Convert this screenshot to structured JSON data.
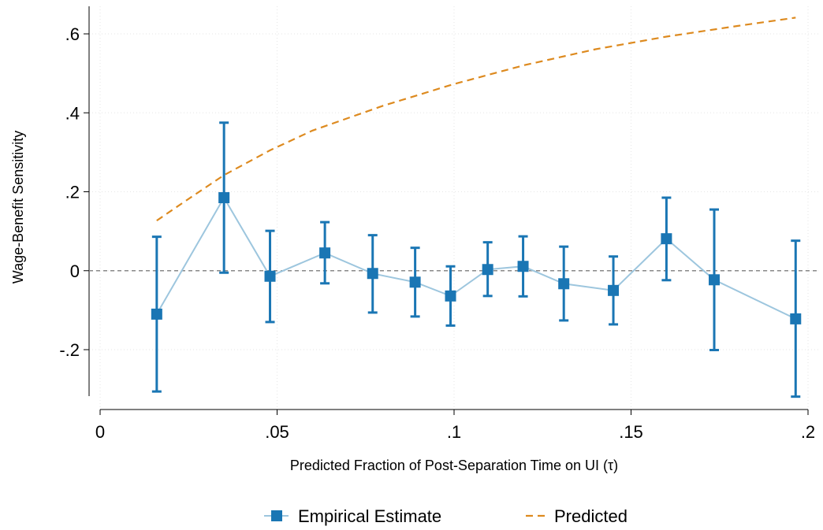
{
  "chart_data": {
    "type": "line",
    "xlabel": "Predicted Fraction of Post-Separation Time on UI (τ)",
    "ylabel": "Wage-Benefit Sensitivity",
    "xlim": [
      0,
      0.2
    ],
    "ylim": [
      -0.35,
      0.65
    ],
    "x_ticks": [
      0,
      0.05,
      0.1,
      0.15,
      0.2
    ],
    "x_tick_labels": [
      "0",
      ".05",
      ".1",
      ".15",
      ".2"
    ],
    "y_ticks": [
      -0.2,
      0,
      0.2,
      0.4,
      0.6
    ],
    "y_tick_labels": [
      "-.2",
      "0",
      ".2",
      ".4",
      ".6"
    ],
    "grid": true,
    "reference_line": {
      "y": 0,
      "style": "dashed",
      "color": "#888888"
    },
    "legend": {
      "position": "bottom"
    },
    "series": [
      {
        "name": "Empirical Estimate",
        "marker": "square",
        "color": "#1a76b4",
        "line_color": "#9dc6de",
        "points": [
          {
            "x": 0.016,
            "y": -0.11,
            "lo": -0.306,
            "hi": 0.086
          },
          {
            "x": 0.035,
            "y": 0.185,
            "lo": -0.005,
            "hi": 0.375
          },
          {
            "x": 0.048,
            "y": -0.014,
            "lo": -0.13,
            "hi": 0.101
          },
          {
            "x": 0.0635,
            "y": 0.045,
            "lo": -0.032,
            "hi": 0.123
          },
          {
            "x": 0.077,
            "y": -0.007,
            "lo": -0.106,
            "hi": 0.09
          },
          {
            "x": 0.089,
            "y": -0.029,
            "lo": -0.116,
            "hi": 0.058
          },
          {
            "x": 0.099,
            "y": -0.064,
            "lo": -0.139,
            "hi": 0.011
          },
          {
            "x": 0.1095,
            "y": 0.003,
            "lo": -0.064,
            "hi": 0.072
          },
          {
            "x": 0.1195,
            "y": 0.011,
            "lo": -0.065,
            "hi": 0.087
          },
          {
            "x": 0.131,
            "y": -0.033,
            "lo": -0.126,
            "hi": 0.061
          },
          {
            "x": 0.145,
            "y": -0.05,
            "lo": -0.136,
            "hi": 0.036
          },
          {
            "x": 0.16,
            "y": 0.081,
            "lo": -0.024,
            "hi": 0.185
          },
          {
            "x": 0.1735,
            "y": -0.023,
            "lo": -0.201,
            "hi": 0.155
          },
          {
            "x": 0.1965,
            "y": -0.122,
            "lo": -0.319,
            "hi": 0.076
          }
        ]
      },
      {
        "name": "Predicted",
        "style": "dashed",
        "color": "#dd8a1f",
        "x": [
          0.016,
          0.025,
          0.035,
          0.048,
          0.06,
          0.08,
          0.1,
          0.12,
          0.14,
          0.16,
          0.18,
          0.1965
        ],
        "y": [
          0.127,
          0.182,
          0.242,
          0.305,
          0.355,
          0.418,
          0.473,
          0.521,
          0.561,
          0.593,
          0.62,
          0.641
        ]
      }
    ]
  }
}
